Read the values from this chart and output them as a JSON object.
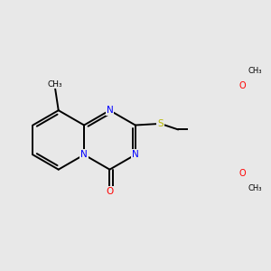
{
  "bg_color": "#e8e8e8",
  "bond_color": "#000000",
  "bond_width": 1.4,
  "atom_colors": {
    "N": "#0000ff",
    "O": "#ff0000",
    "S": "#b8b800",
    "C": "#000000"
  },
  "font_size_atom": 7.5,
  "figsize": [
    3.0,
    3.0
  ],
  "dpi": 100,
  "xlim": [
    -2.8,
    3.5
  ],
  "ylim": [
    -2.5,
    2.8
  ]
}
